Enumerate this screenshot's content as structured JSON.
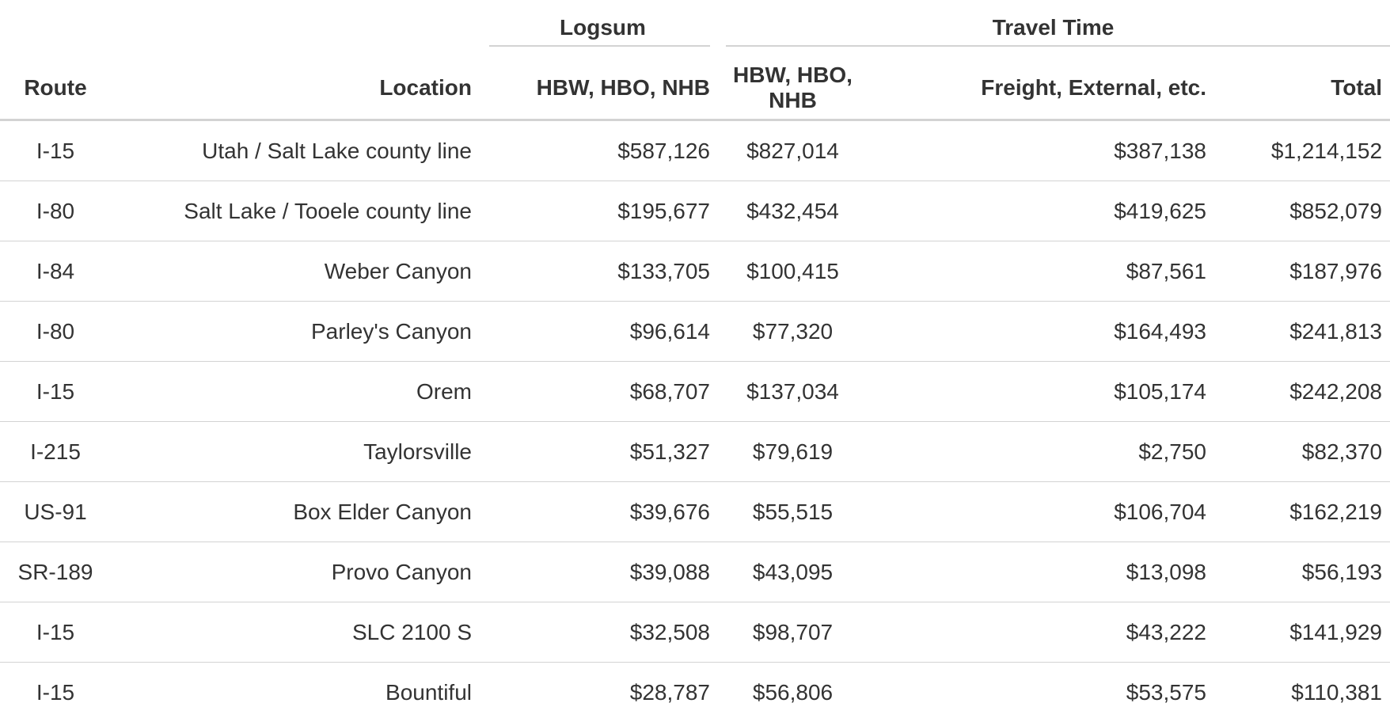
{
  "table": {
    "group_headers": {
      "logsum": "Logsum",
      "travel_time": "Travel Time"
    },
    "columns": {
      "route": "Route",
      "location": "Location",
      "logsum_hbw": "HBW, HBO, NHB",
      "tt_hbw": "HBW, HBO, NHB",
      "tt_freight": "Freight, External, etc.",
      "total": "Total"
    },
    "rows": [
      [
        "I-15",
        "Utah / Salt Lake county line",
        "$587,126",
        "$827,014",
        "$387,138",
        "$1,214,152"
      ],
      [
        "I-80",
        "Salt Lake / Tooele county line",
        "$195,677",
        "$432,454",
        "$419,625",
        "$852,079"
      ],
      [
        "I-84",
        "Weber Canyon",
        "$133,705",
        "$100,415",
        "$87,561",
        "$187,976"
      ],
      [
        "I-80",
        "Parley's Canyon",
        "$96,614",
        "$77,320",
        "$164,493",
        "$241,813"
      ],
      [
        "I-15",
        "Orem",
        "$68,707",
        "$137,034",
        "$105,174",
        "$242,208"
      ],
      [
        "I-215",
        "Taylorsville",
        "$51,327",
        "$79,619",
        "$2,750",
        "$82,370"
      ],
      [
        "US-91",
        "Box Elder Canyon",
        "$39,676",
        "$55,515",
        "$106,704",
        "$162,219"
      ],
      [
        "SR-189",
        "Provo Canyon",
        "$39,088",
        "$43,095",
        "$13,098",
        "$56,193"
      ],
      [
        "I-15",
        "SLC 2100 S",
        "$32,508",
        "$98,707",
        "$43,222",
        "$141,929"
      ],
      [
        "I-15",
        "Bountiful",
        "$28,787",
        "$56,806",
        "$53,575",
        "$110,381"
      ]
    ]
  }
}
